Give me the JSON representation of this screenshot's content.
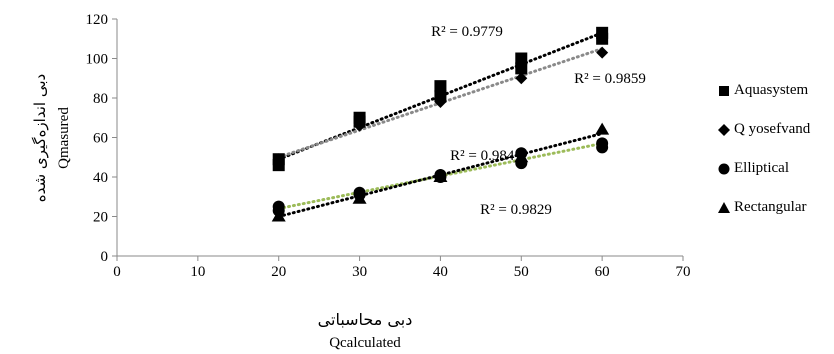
{
  "chart_data": {
    "type": "scatter",
    "title": "",
    "xlabel": "دبی محاسباتی",
    "xlabel_en": "Qcalculated",
    "ylabel": "دبی اندازه‌گیری شده",
    "ylabel_en": "Qmasured",
    "xlim": [
      0,
      70
    ],
    "ylim": [
      0,
      120
    ],
    "x_ticks": [
      0,
      10,
      20,
      30,
      40,
      50,
      60,
      70
    ],
    "y_ticks": [
      0,
      20,
      40,
      60,
      80,
      100,
      120
    ],
    "grid": false,
    "legend_position": "right",
    "series": [
      {
        "name": "Aquasystem",
        "marker": "square",
        "x": [
          20,
          20,
          30,
          30,
          40,
          40,
          50,
          50,
          60,
          60
        ],
        "y": [
          46,
          49,
          68,
          70,
          81,
          86,
          95,
          100,
          110,
          113
        ],
        "trendline": {
          "color": "#000000",
          "r2_label": "R² = 0.9779",
          "start": [
            20,
            49
          ],
          "end": [
            60,
            113
          ]
        }
      },
      {
        "name": "Q yosefvand",
        "marker": "diamond",
        "x": [
          20,
          30,
          40,
          50,
          60
        ],
        "y": [
          49,
          66,
          78,
          90,
          103
        ],
        "trendline": {
          "color": "#8a8a8a",
          "r2_label": "R² = 0.9859",
          "start": [
            20,
            50
          ],
          "end": [
            60,
            105
          ]
        }
      },
      {
        "name": "Elliptical",
        "marker": "circle",
        "x": [
          20,
          20,
          30,
          30,
          40,
          40,
          50,
          50,
          60,
          60
        ],
        "y": [
          23,
          25,
          31,
          32,
          40,
          41,
          47,
          52,
          55,
          57
        ],
        "trendline": {
          "color": "#9cbb59",
          "r2_label": "R² = 0.9841",
          "start": [
            20,
            24
          ],
          "end": [
            60,
            57
          ]
        }
      },
      {
        "name": "Rectangular",
        "marker": "triangle",
        "x": [
          20,
          30,
          40,
          50,
          60
        ],
        "y": [
          20,
          29,
          40,
          50,
          64
        ],
        "trendline": {
          "color": "#000000",
          "r2_label": "R² = 0.9829",
          "start": [
            20,
            20
          ],
          "end": [
            60,
            62
          ]
        }
      }
    ]
  }
}
